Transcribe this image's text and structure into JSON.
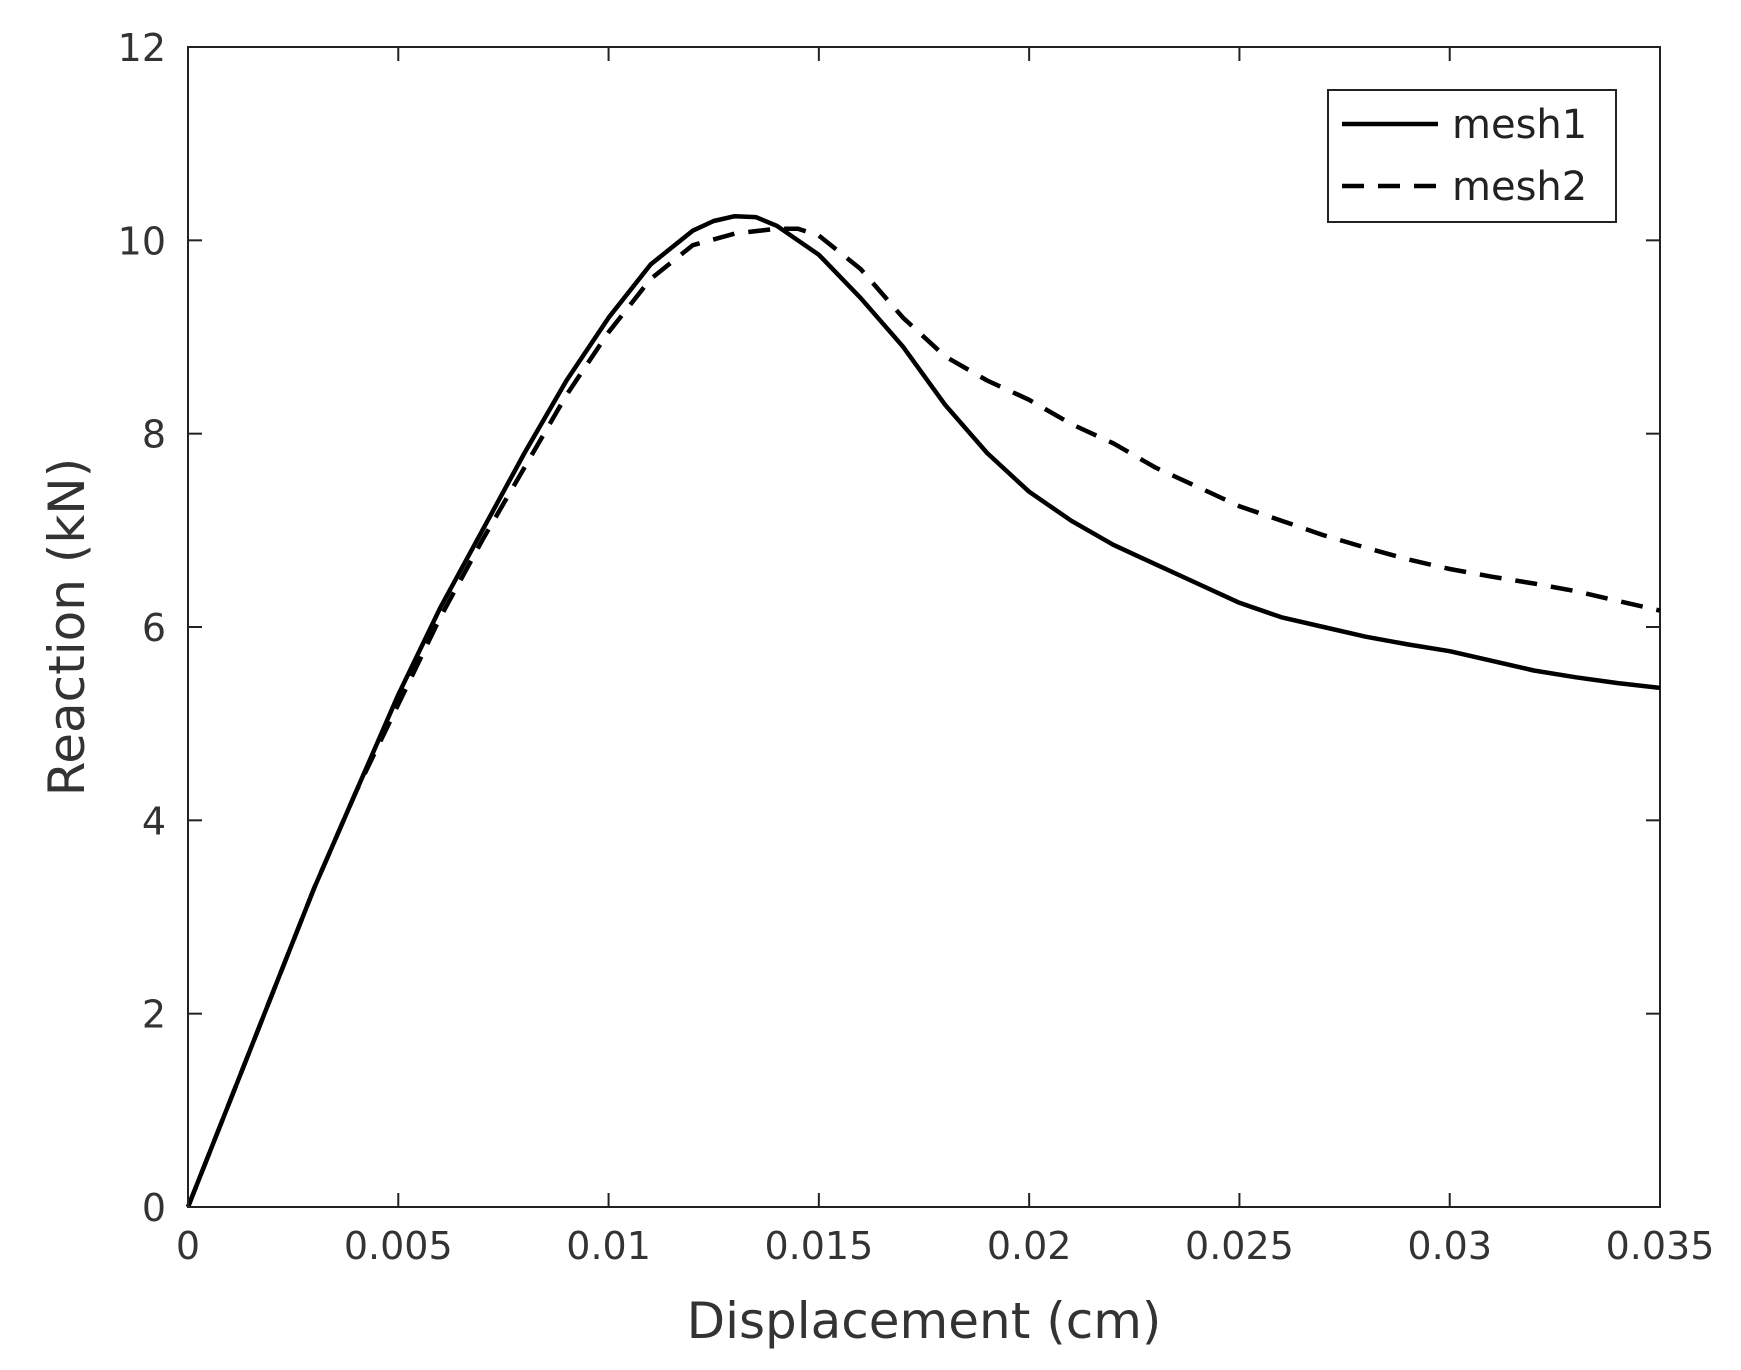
{
  "chart_data": {
    "type": "line",
    "title": "",
    "xlabel": "Displacement (cm)",
    "ylabel": "Reaction (kN)",
    "xlim": [
      0,
      0.035
    ],
    "ylim": [
      0,
      12
    ],
    "xticks": [
      0,
      0.005,
      0.01,
      0.015,
      0.02,
      0.025,
      0.03,
      0.035
    ],
    "xtick_labels": [
      "0",
      "0.005",
      "0.01",
      "0.015",
      "0.02",
      "0.025",
      "0.03",
      "0.035"
    ],
    "yticks": [
      0,
      2,
      4,
      6,
      8,
      10,
      12
    ],
    "ytick_labels": [
      "0",
      "2",
      "4",
      "6",
      "8",
      "10",
      "12"
    ],
    "grid": false,
    "legend_position": "top-right",
    "series": [
      {
        "name": "mesh1",
        "line_style": "solid",
        "color": "#000000",
        "x": [
          0,
          0.001,
          0.002,
          0.003,
          0.004,
          0.005,
          0.006,
          0.007,
          0.008,
          0.009,
          0.01,
          0.011,
          0.012,
          0.0125,
          0.013,
          0.0135,
          0.014,
          0.015,
          0.016,
          0.017,
          0.018,
          0.019,
          0.02,
          0.021,
          0.022,
          0.023,
          0.024,
          0.025,
          0.026,
          0.027,
          0.028,
          0.029,
          0.03,
          0.031,
          0.032,
          0.033,
          0.034,
          0.035
        ],
        "y": [
          0,
          1.1,
          2.2,
          3.3,
          4.3,
          5.3,
          6.2,
          7.0,
          7.8,
          8.55,
          9.2,
          9.75,
          10.1,
          10.2,
          10.25,
          10.24,
          10.15,
          9.85,
          9.4,
          8.9,
          8.3,
          7.8,
          7.4,
          7.1,
          6.85,
          6.65,
          6.45,
          6.25,
          6.1,
          6.0,
          5.9,
          5.82,
          5.75,
          5.65,
          5.55,
          5.48,
          5.42,
          5.37
        ]
      },
      {
        "name": "mesh2",
        "line_style": "dashed",
        "color": "#000000",
        "x": [
          0,
          0.001,
          0.002,
          0.003,
          0.004,
          0.005,
          0.006,
          0.007,
          0.008,
          0.009,
          0.01,
          0.011,
          0.012,
          0.013,
          0.014,
          0.0145,
          0.015,
          0.016,
          0.017,
          0.018,
          0.019,
          0.02,
          0.021,
          0.022,
          0.023,
          0.024,
          0.025,
          0.026,
          0.027,
          0.028,
          0.029,
          0.03,
          0.031,
          0.032,
          0.033,
          0.034,
          0.035
        ],
        "y": [
          0,
          1.1,
          2.2,
          3.3,
          4.3,
          5.2,
          6.1,
          6.9,
          7.65,
          8.4,
          9.05,
          9.6,
          9.95,
          10.07,
          10.12,
          10.12,
          10.05,
          9.7,
          9.2,
          8.8,
          8.55,
          8.35,
          8.1,
          7.9,
          7.65,
          7.45,
          7.25,
          7.1,
          6.95,
          6.82,
          6.7,
          6.6,
          6.52,
          6.45,
          6.37,
          6.27,
          6.17
        ]
      }
    ]
  }
}
